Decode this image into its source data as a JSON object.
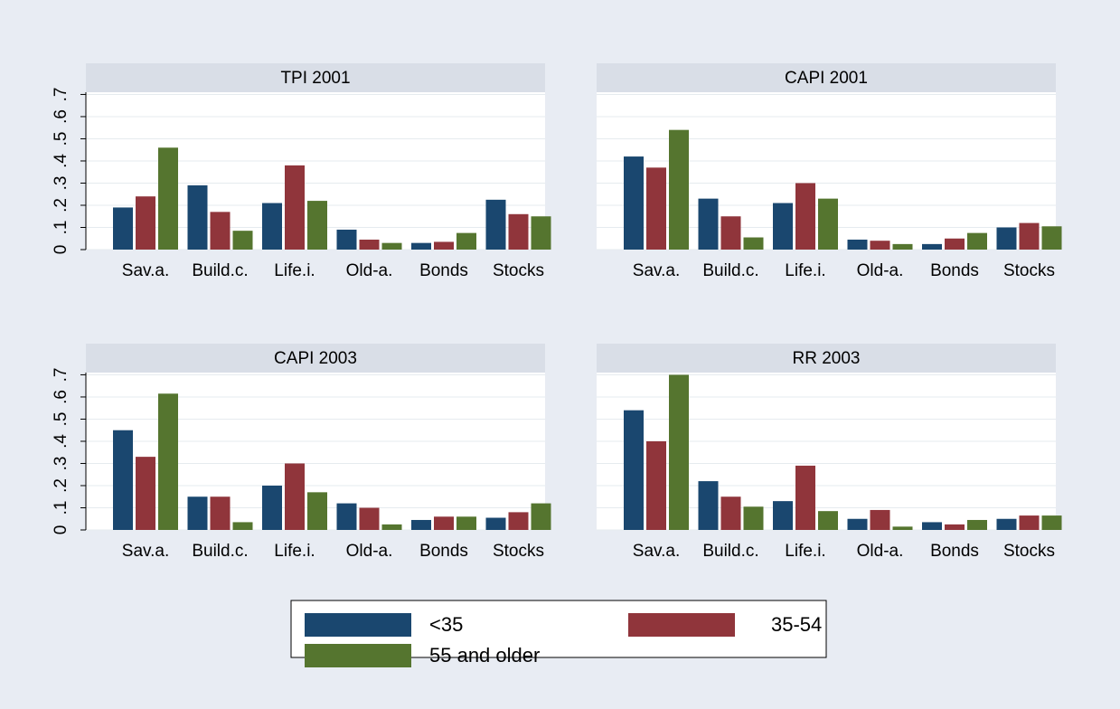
{
  "chart_data": [
    {
      "type": "bar",
      "title": "TPI 2001",
      "categories": [
        "Sav.a.",
        "Build.c.",
        "Life.i.",
        "Old-a.",
        "Bonds",
        "Stocks"
      ],
      "series": [
        {
          "name": "<35",
          "color": "#1a476f",
          "values": [
            0.19,
            0.29,
            0.21,
            0.09,
            0.03,
            0.225
          ]
        },
        {
          "name": "35-54",
          "color": "#90353b",
          "values": [
            0.24,
            0.17,
            0.38,
            0.045,
            0.035,
            0.16
          ]
        },
        {
          "name": "55 and older",
          "color": "#55752f",
          "values": [
            0.46,
            0.085,
            0.22,
            0.03,
            0.075,
            0.15
          ]
        }
      ],
      "ylim": [
        0,
        0.71
      ],
      "yticks": [
        {
          "value": 0,
          "label": "0"
        },
        {
          "value": 0.1,
          "label": ".1"
        },
        {
          "value": 0.2,
          "label": ".2"
        },
        {
          "value": 0.3,
          "label": ".3"
        },
        {
          "value": 0.4,
          "label": ".4"
        },
        {
          "value": 0.5,
          "label": ".5"
        },
        {
          "value": 0.6,
          "label": ".6"
        },
        {
          "value": 0.7,
          "label": ".7"
        }
      ],
      "grid": true
    },
    {
      "type": "bar",
      "title": "CAPI 2001",
      "categories": [
        "Sav.a.",
        "Build.c.",
        "Life.i.",
        "Old-a.",
        "Bonds",
        "Stocks"
      ],
      "series": [
        {
          "color": "#1a476f",
          "values": [
            0.42,
            0.23,
            0.21,
            0.045,
            0.025,
            0.1
          ]
        },
        {
          "color": "#90353b",
          "values": [
            0.37,
            0.15,
            0.3,
            0.04,
            0.05,
            0.12
          ]
        },
        {
          "color": "#55752f",
          "values": [
            0.54,
            0.055,
            0.23,
            0.025,
            0.075,
            0.105
          ]
        }
      ],
      "ylim": [
        0,
        0.71
      ],
      "yticks": [
        0,
        0.1,
        0.2,
        0.3,
        0.4,
        0.5,
        0.6,
        0.7
      ],
      "grid": true
    },
    {
      "type": "bar",
      "title": "CAPI 2003",
      "categories": [
        "Sav.a.",
        "Build.c.",
        "Life.i.",
        "Old-a.",
        "Bonds",
        "Stocks"
      ],
      "series": [
        {
          "color": "#1a476f",
          "values": [
            0.45,
            0.15,
            0.2,
            0.12,
            0.045,
            0.055
          ]
        },
        {
          "color": "#90353b",
          "values": [
            0.33,
            0.15,
            0.3,
            0.1,
            0.06,
            0.08
          ]
        },
        {
          "color": "#55752f",
          "values": [
            0.615,
            0.035,
            0.17,
            0.025,
            0.06,
            0.12
          ]
        }
      ],
      "ylim": [
        0,
        0.71
      ],
      "yticks": [
        {
          "value": 0,
          "label": "0"
        },
        {
          "value": 0.1,
          "label": ".1"
        },
        {
          "value": 0.2,
          "label": ".2"
        },
        {
          "value": 0.3,
          "label": ".3"
        },
        {
          "value": 0.4,
          "label": ".4"
        },
        {
          "value": 0.5,
          "label": ".5"
        },
        {
          "value": 0.6,
          "label": ".6"
        },
        {
          "value": 0.7,
          "label": ".7"
        }
      ],
      "grid": true
    },
    {
      "type": "bar",
      "title": "RR 2003",
      "categories": [
        "Sav.a.",
        "Build.c.",
        "Life.i.",
        "Old-a.",
        "Bonds",
        "Stocks"
      ],
      "series": [
        {
          "color": "#1a476f",
          "values": [
            0.54,
            0.22,
            0.13,
            0.05,
            0.035,
            0.05
          ]
        },
        {
          "color": "#90353b",
          "values": [
            0.4,
            0.15,
            0.29,
            0.09,
            0.025,
            0.065
          ]
        },
        {
          "color": "#55752f",
          "values": [
            0.7,
            0.105,
            0.085,
            0.015,
            0.045,
            0.065
          ]
        }
      ],
      "ylim": [
        0,
        0.71
      ],
      "yticks": [
        0,
        0.1,
        0.2,
        0.3,
        0.4,
        0.5,
        0.6,
        0.7
      ],
      "grid": true
    }
  ]
}
